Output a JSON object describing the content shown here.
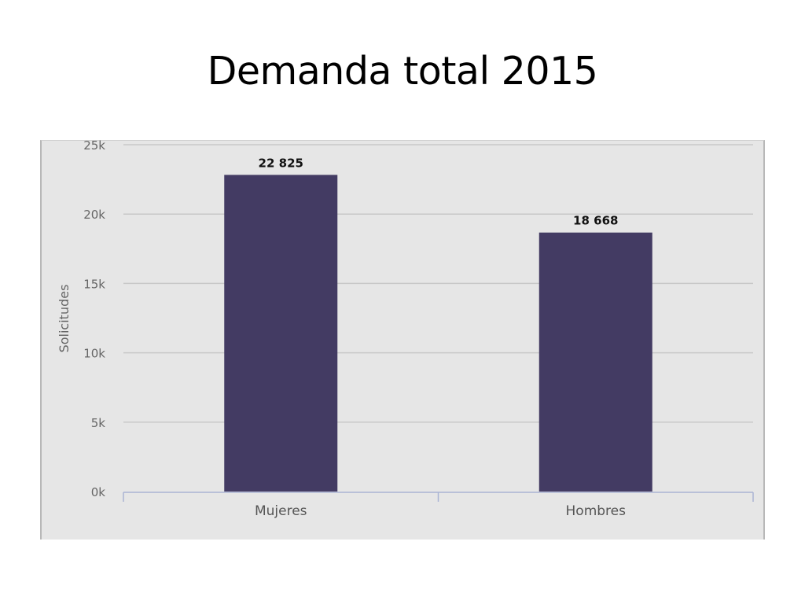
{
  "slide": {
    "title": "Demanda total 2015"
  },
  "chart_data": {
    "type": "bar",
    "categories": [
      "Mujeres",
      "Hombres"
    ],
    "values": [
      22825,
      18668
    ],
    "data_labels": [
      "22 825",
      "18 668"
    ],
    "title": "",
    "xlabel": "",
    "ylabel": "Solicitudes",
    "ylim": [
      0,
      25000
    ],
    "yticks": [
      0,
      5000,
      10000,
      15000,
      20000,
      25000
    ],
    "ytick_labels": [
      "0k",
      "5k",
      "10k",
      "15k",
      "20k",
      "25k"
    ],
    "grid": true,
    "legend": "none",
    "colors": {
      "bar": "#433b63",
      "gridline": "#c8c8c8",
      "axis": "#aab4d4",
      "background": "#e6e6e6"
    }
  }
}
